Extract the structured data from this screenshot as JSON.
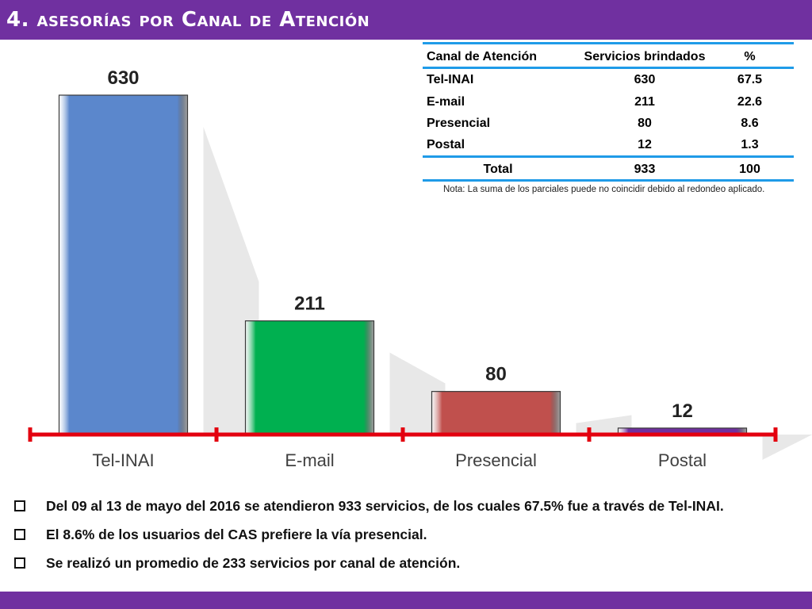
{
  "header": {
    "title": "4. asesorías por Canal de Atención"
  },
  "table": {
    "columns": [
      "Canal de Atención",
      "Servicios brindados",
      "%"
    ],
    "rows": [
      [
        "Tel-INAI",
        "630",
        "67.5"
      ],
      [
        "E-mail",
        "211",
        "22.6"
      ],
      [
        "Presencial",
        "80",
        "8.6"
      ],
      [
        "Postal",
        "12",
        "1.3"
      ]
    ],
    "total": [
      "Total",
      "933",
      "100"
    ],
    "note": "Nota: La suma de los parciales puede no coincidir debido al redondeo aplicado."
  },
  "bullets": [
    "Del 09 al 13 de mayo del 2016 se atendieron 933 servicios, de los cuales 67.5% fue a través de Tel-INAI.",
    "El 8.6% de los usuarios del CAS prefiere la vía presencial.",
    "Se realizó un promedio de 233 servicios por canal de atención."
  ],
  "chart_data": {
    "type": "bar",
    "categories": [
      "Tel-INAI",
      "E-mail",
      "Presencial",
      "Postal"
    ],
    "values": [
      630,
      211,
      80,
      12
    ],
    "data_labels": [
      "630",
      "211",
      "80",
      "12"
    ],
    "colors": [
      "#5b87cc",
      "#00b050",
      "#c0504d",
      "#7030a0"
    ],
    "axis_color": "#e3000f",
    "ylim": [
      0,
      650
    ],
    "grid": false,
    "legend": "none"
  }
}
